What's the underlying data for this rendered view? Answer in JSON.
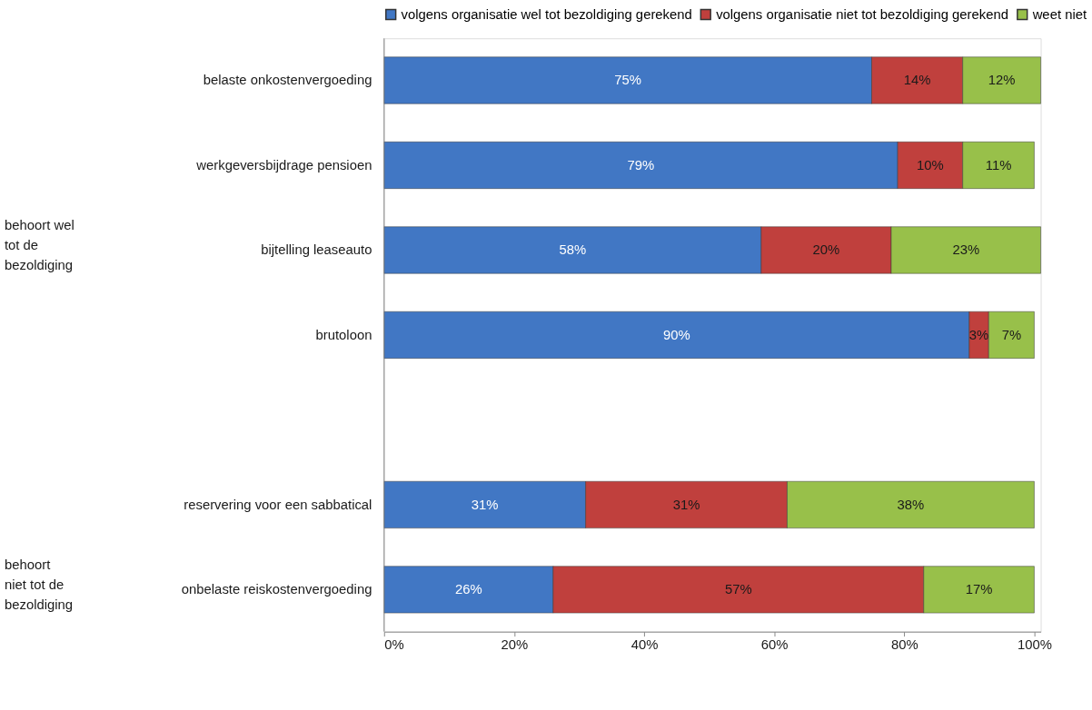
{
  "chart_data": {
    "type": "bar",
    "orientation": "horizontal",
    "stacked": true,
    "categories": [
      "belaste onkostenvergoeding",
      "werkgeversbijdrage pensioen",
      "bijtelling leaseauto",
      "brutoloon",
      null,
      "reservering voor een sabbatical",
      "onbelaste reiskostenvergoeding"
    ],
    "series": [
      {
        "name": "volgens organisatie wel tot bezoldiging gerekend",
        "color": "#4177c4",
        "values": [
          75,
          79,
          58,
          90,
          null,
          31,
          26
        ],
        "value_labels": [
          "75%",
          "79%",
          "58%",
          "90%",
          null,
          "31%",
          "26%"
        ]
      },
      {
        "name": "volgens organisatie niet tot bezoldiging gerekend",
        "color": "#c0403d",
        "values": [
          14,
          10,
          20,
          3,
          null,
          31,
          57
        ],
        "value_labels": [
          "14%",
          "10%",
          "20%",
          "3%",
          null,
          "31%",
          "57%"
        ]
      },
      {
        "name": "weet niet",
        "color": "#98c04a",
        "values": [
          12,
          11,
          23,
          7,
          null,
          38,
          17
        ],
        "value_labels": [
          "12%",
          "11%",
          "23%",
          "7%",
          null,
          "38%",
          "17%"
        ]
      }
    ],
    "xlim": [
      0,
      101
    ],
    "xticks": [
      {
        "value": 0,
        "label": "0%"
      },
      {
        "value": 20,
        "label": "20%"
      },
      {
        "value": 40,
        "label": "40%"
      },
      {
        "value": 60,
        "label": "60%"
      },
      {
        "value": 80,
        "label": "80%"
      },
      {
        "value": 100,
        "label": "100%"
      }
    ],
    "annotations": [
      "behoort wel tot de bezoldiging",
      "behoort niet tot de bezoldiging"
    ],
    "legend": "top",
    "grid": false
  }
}
